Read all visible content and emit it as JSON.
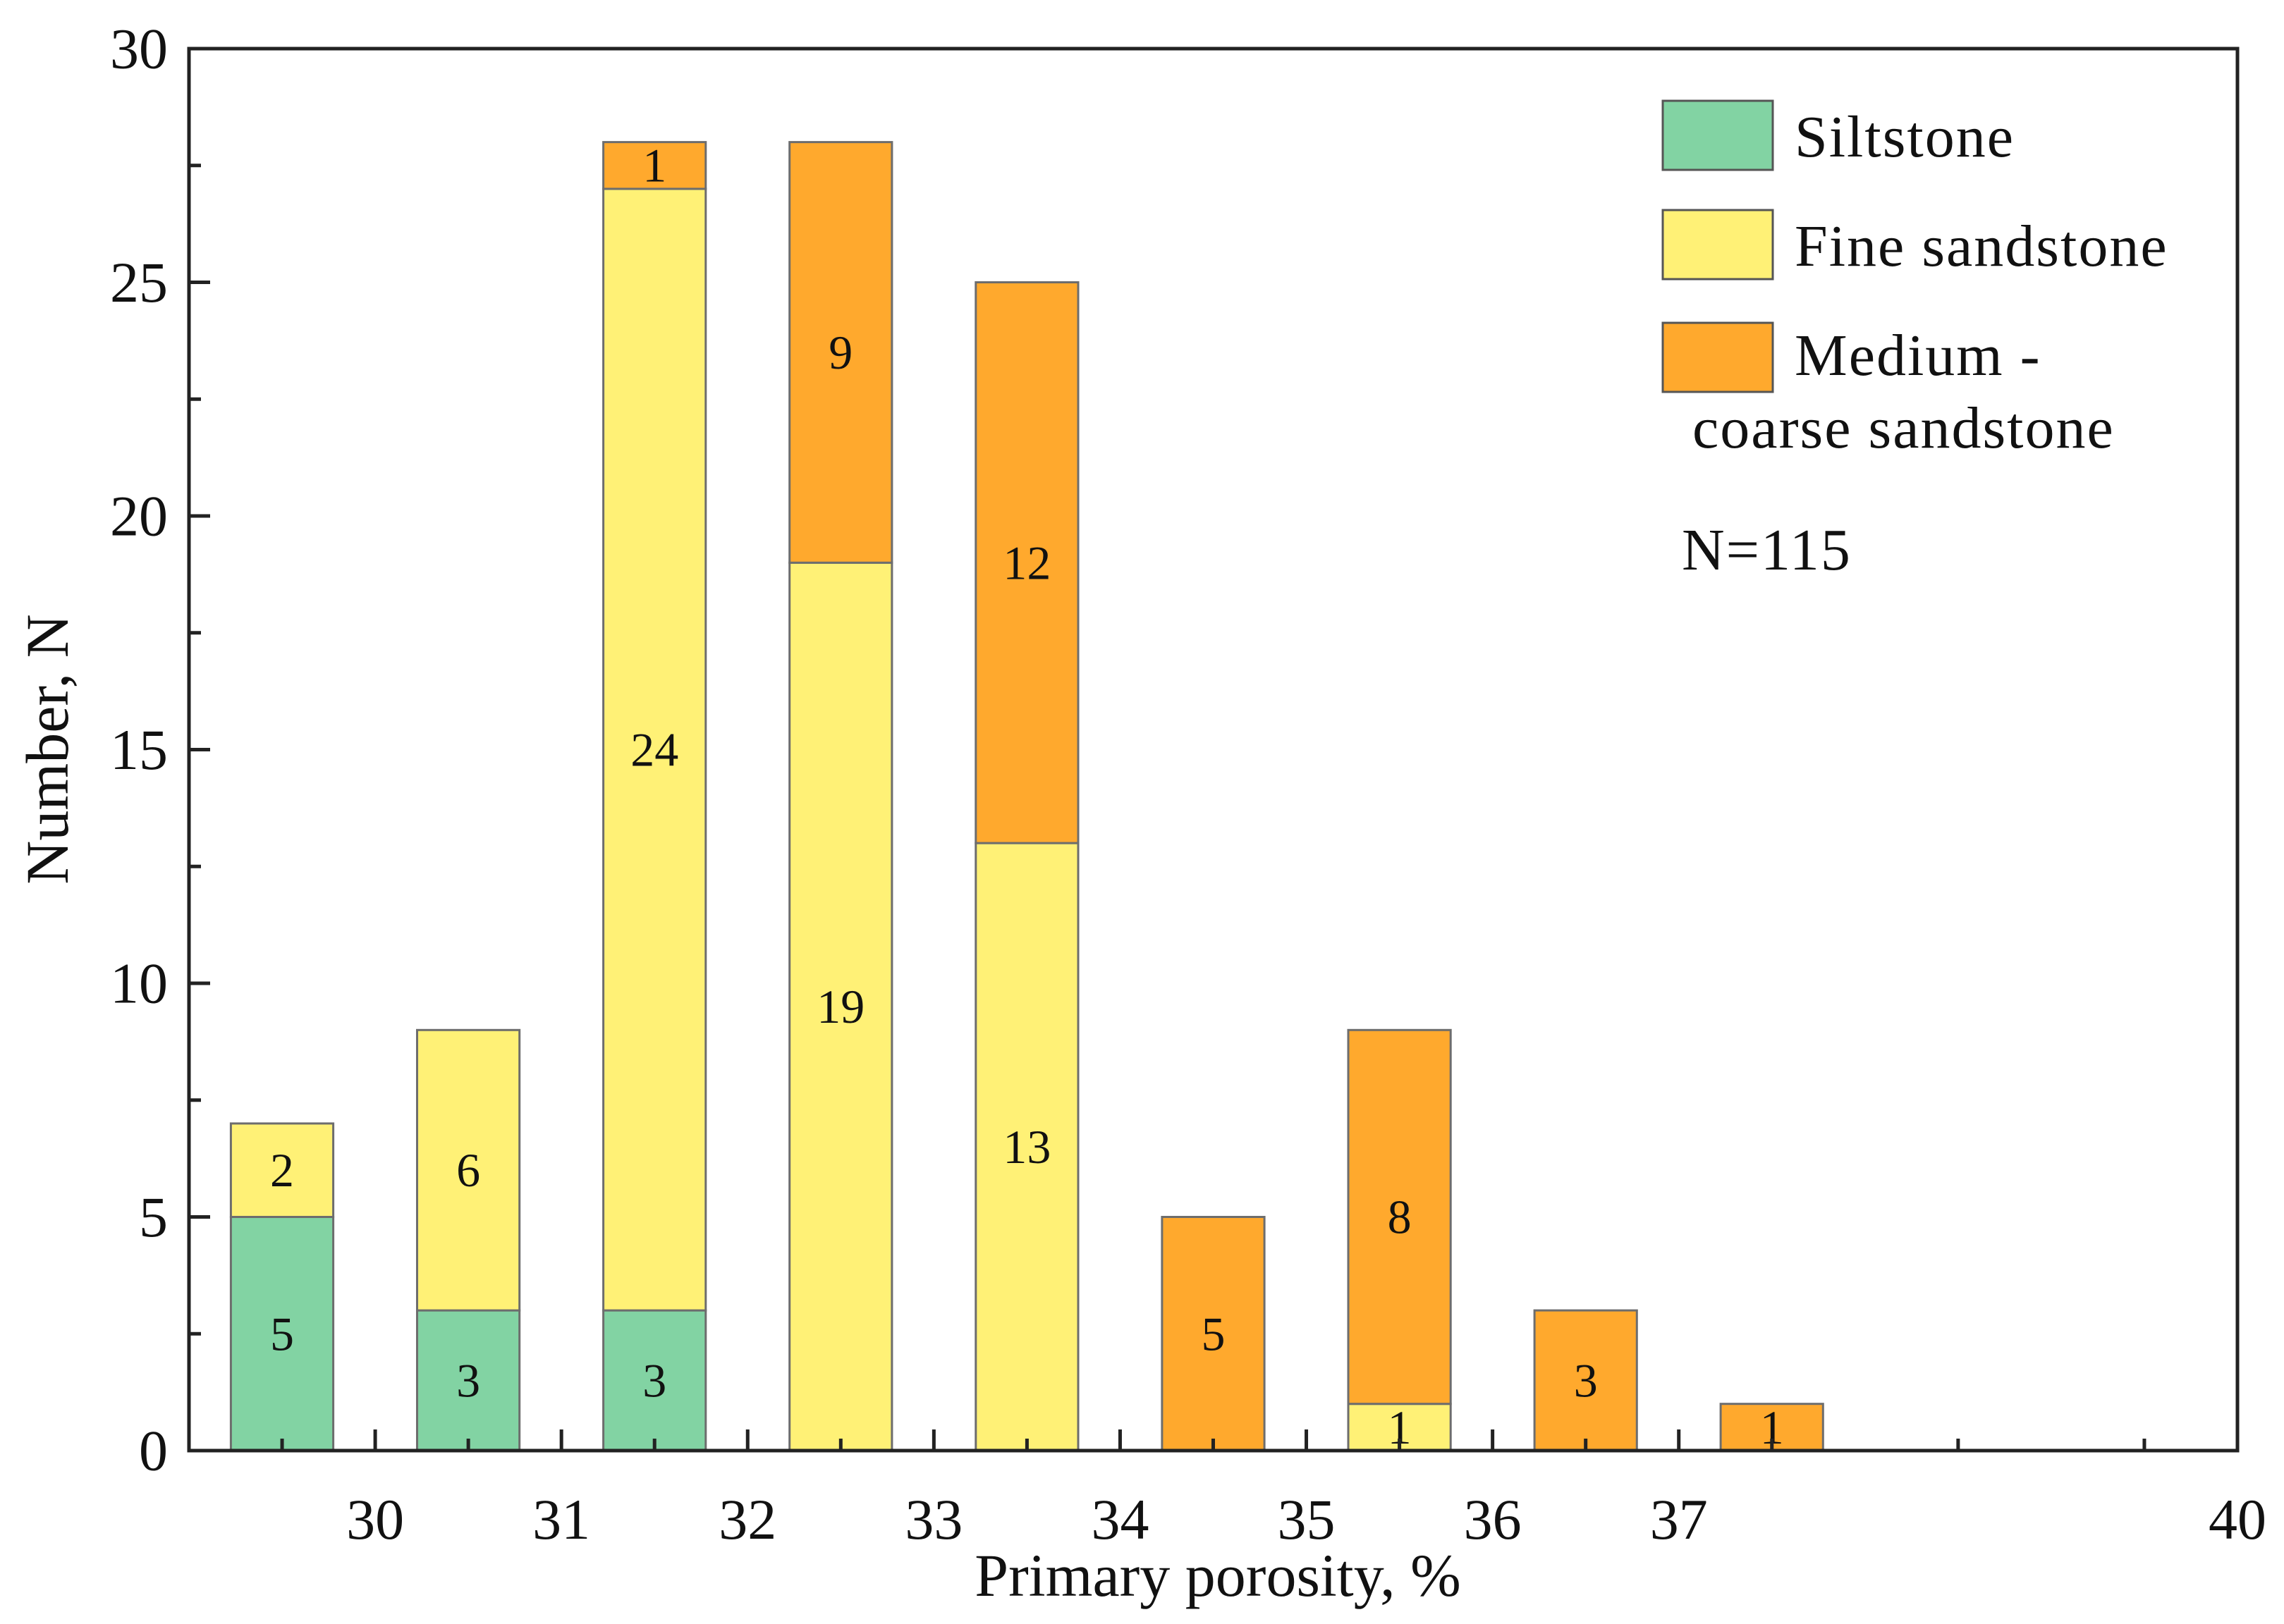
{
  "chart_data": {
    "type": "bar",
    "stacked": true,
    "title": "",
    "xlabel": "Primary porosity, %",
    "ylabel": "Number, N",
    "xlim": [
      29,
      40
    ],
    "ylim": [
      0,
      30
    ],
    "x_ticks": [
      "30",
      "31",
      "32",
      "33",
      "34",
      "35",
      "36",
      "37",
      "40"
    ],
    "y_ticks": [
      "0",
      "5",
      "10",
      "15",
      "20",
      "25",
      "30"
    ],
    "bins": [
      29.5,
      30.5,
      31.5,
      32.5,
      33.5,
      34.5,
      35.5,
      36.5,
      37.5
    ],
    "series": [
      {
        "name": "Siltstone",
        "color": "#82d3a3",
        "values": [
          5,
          3,
          3,
          0,
          0,
          0,
          0,
          0,
          0
        ]
      },
      {
        "name": "Fine sandstone",
        "color": "#fff176",
        "values": [
          2,
          6,
          24,
          19,
          13,
          0,
          1,
          0,
          0
        ]
      },
      {
        "name": "Medium - coarse sandstone",
        "color": "#ffa92d",
        "values": [
          0,
          0,
          1,
          9,
          12,
          5,
          8,
          3,
          1
        ]
      }
    ],
    "legend": {
      "position": "top-right",
      "labels": [
        "Siltstone",
        "Fine sandstone",
        "Medium -",
        "coarse sandstone"
      ]
    },
    "annotation": "N=115"
  }
}
